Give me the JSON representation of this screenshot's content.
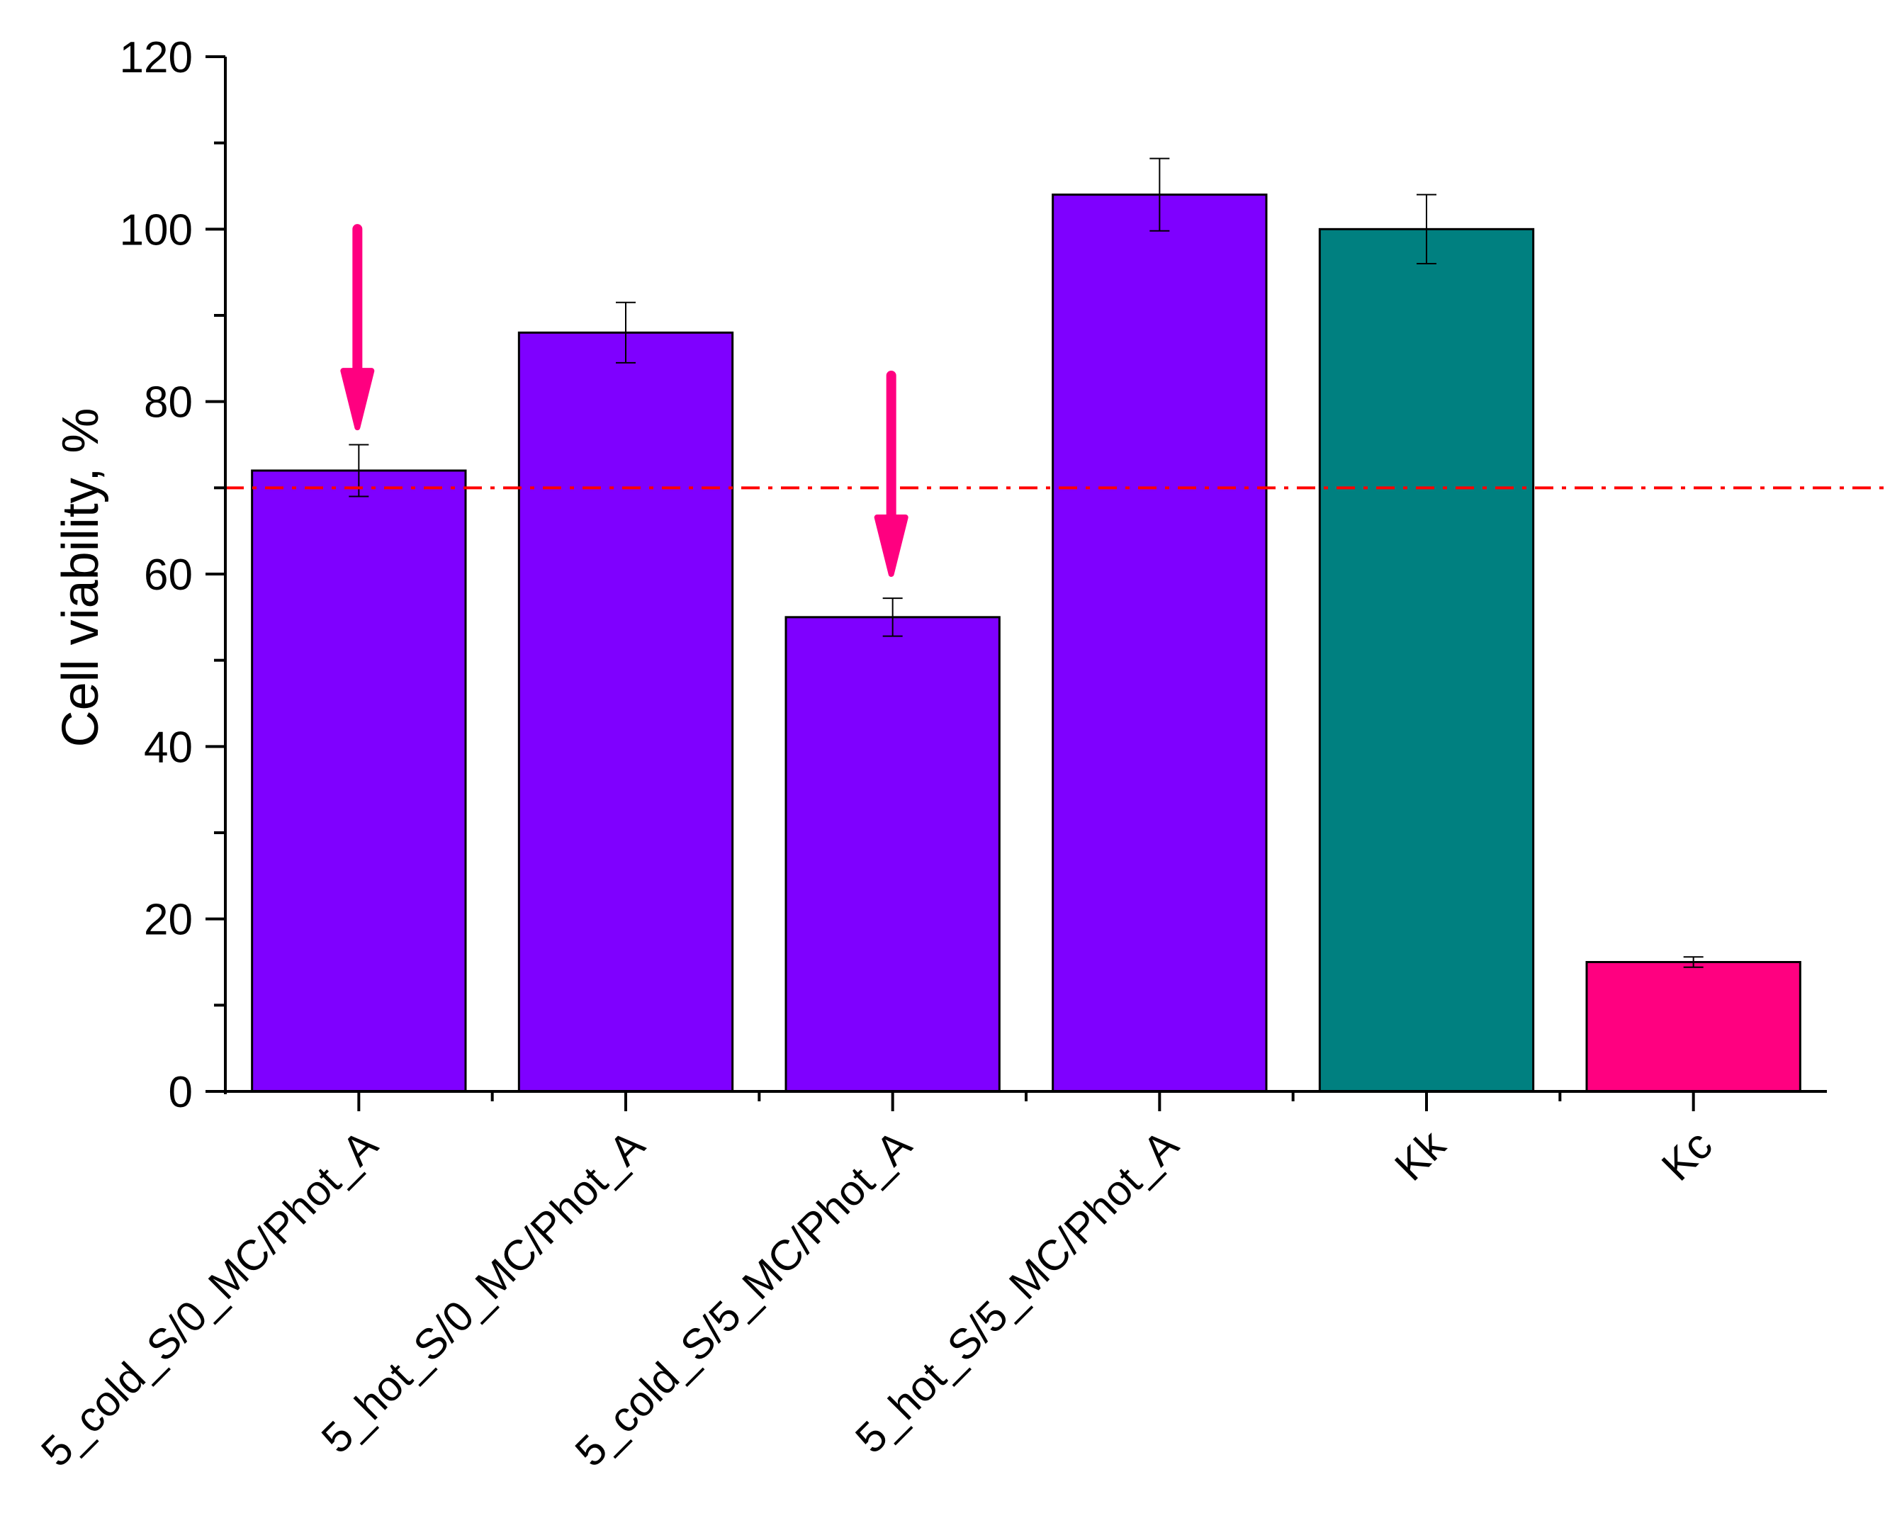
{
  "chart_data": {
    "type": "bar",
    "ylabel": "Cell viability, %",
    "xlabel": "",
    "ylim": [
      0,
      120
    ],
    "yticks": [
      0,
      20,
      40,
      60,
      80,
      100,
      120
    ],
    "categories": [
      "5_cold_S/0_MC/Phot_A",
      "5_hot_S/0_MC/Phot_A",
      "5_cold_S/5_MC/Phot_A",
      "5_hot_S/5_MC/Phot_A",
      "Kk",
      "Kc"
    ],
    "values": [
      72,
      88,
      55,
      104,
      100,
      15
    ],
    "errors": [
      3,
      3.5,
      2.2,
      4.2,
      4,
      0.6
    ],
    "colors": [
      "#7f00ff",
      "#7f00ff",
      "#7f00ff",
      "#7f00ff",
      "#008080",
      "#ff0080"
    ],
    "reference_line": {
      "value": 70,
      "color": "#ff0000",
      "style": "dash-dot"
    },
    "arrow_markers": {
      "color": "#ff0080",
      "categories": [
        "5_cold_S/0_MC/Phot_A",
        "5_cold_S/5_MC/Phot_A"
      ]
    }
  }
}
